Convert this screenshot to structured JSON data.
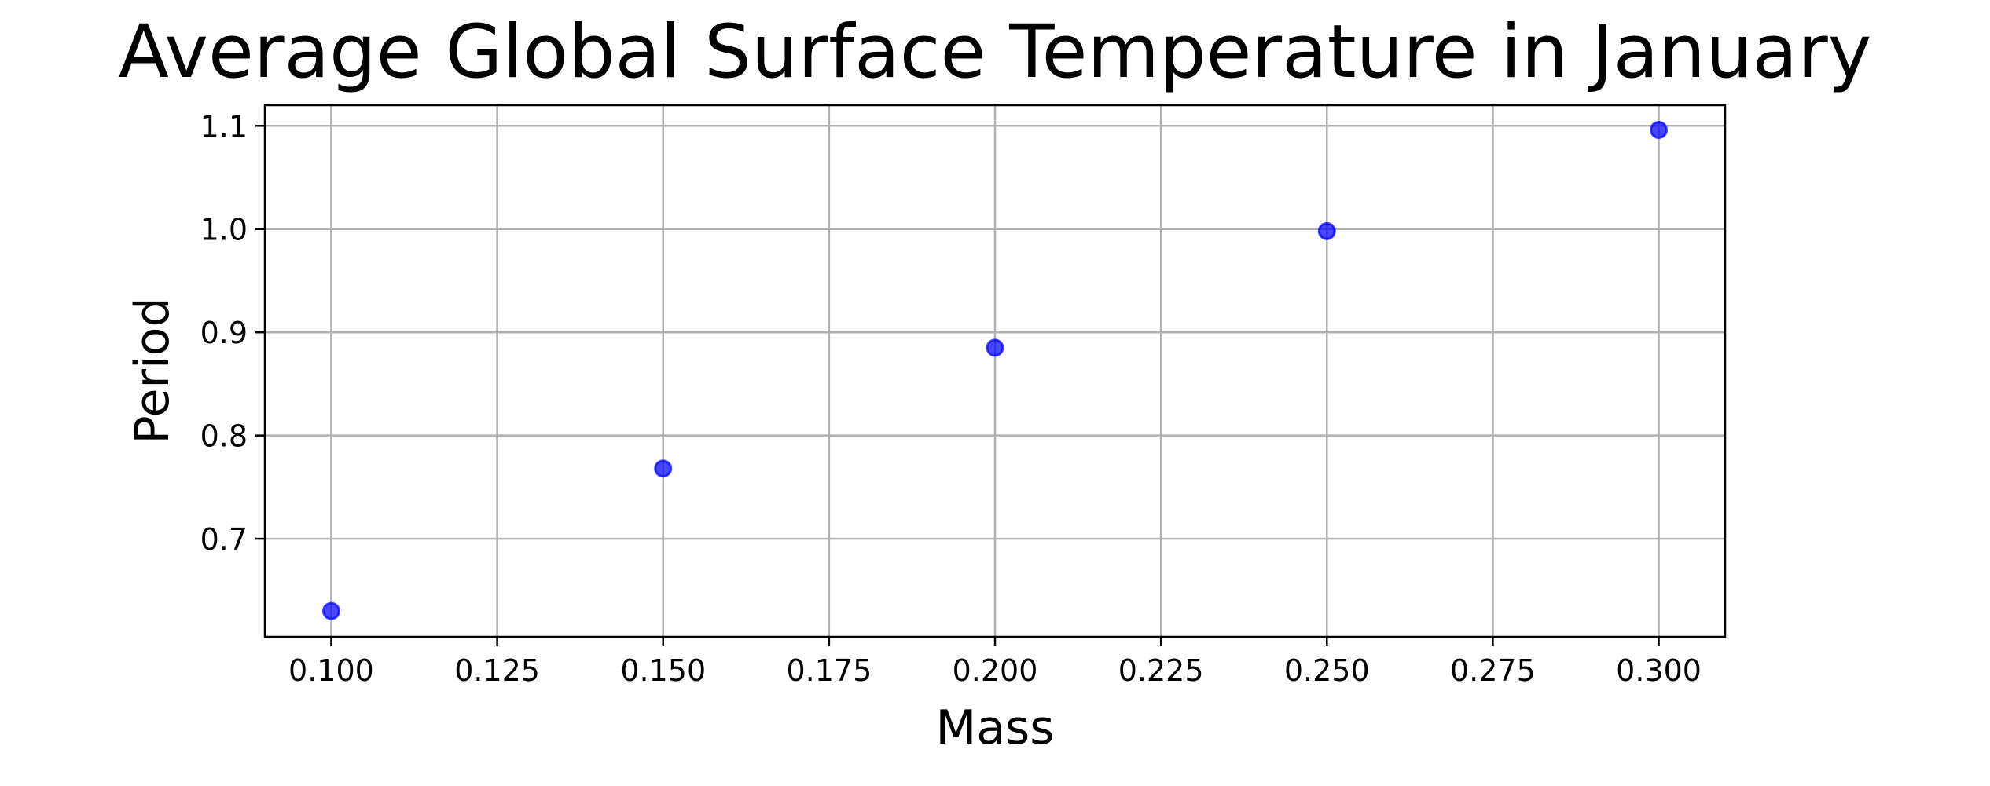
{
  "chart_data": {
    "type": "scatter",
    "title": "Average Global Surface Temperature in January",
    "xlabel": "Mass",
    "ylabel": "Period",
    "xlim": [
      0.09,
      0.31
    ],
    "ylim": [
      0.605,
      1.12
    ],
    "xticks": [
      0.1,
      0.125,
      0.15,
      0.175,
      0.2,
      0.225,
      0.25,
      0.275,
      0.3
    ],
    "xtick_labels": [
      "0.100",
      "0.125",
      "0.150",
      "0.175",
      "0.200",
      "0.225",
      "0.250",
      "0.275",
      "0.300"
    ],
    "yticks": [
      0.7,
      0.8,
      0.9,
      1.0,
      1.1
    ],
    "ytick_labels": [
      "0.7",
      "0.8",
      "0.9",
      "1.0",
      "1.1"
    ],
    "grid": true,
    "marker_color": "#0000ff",
    "series": [
      {
        "x": [
          0.1,
          0.15,
          0.2,
          0.25,
          0.3
        ],
        "y": [
          0.63,
          0.768,
          0.885,
          0.998,
          1.096
        ]
      }
    ]
  }
}
